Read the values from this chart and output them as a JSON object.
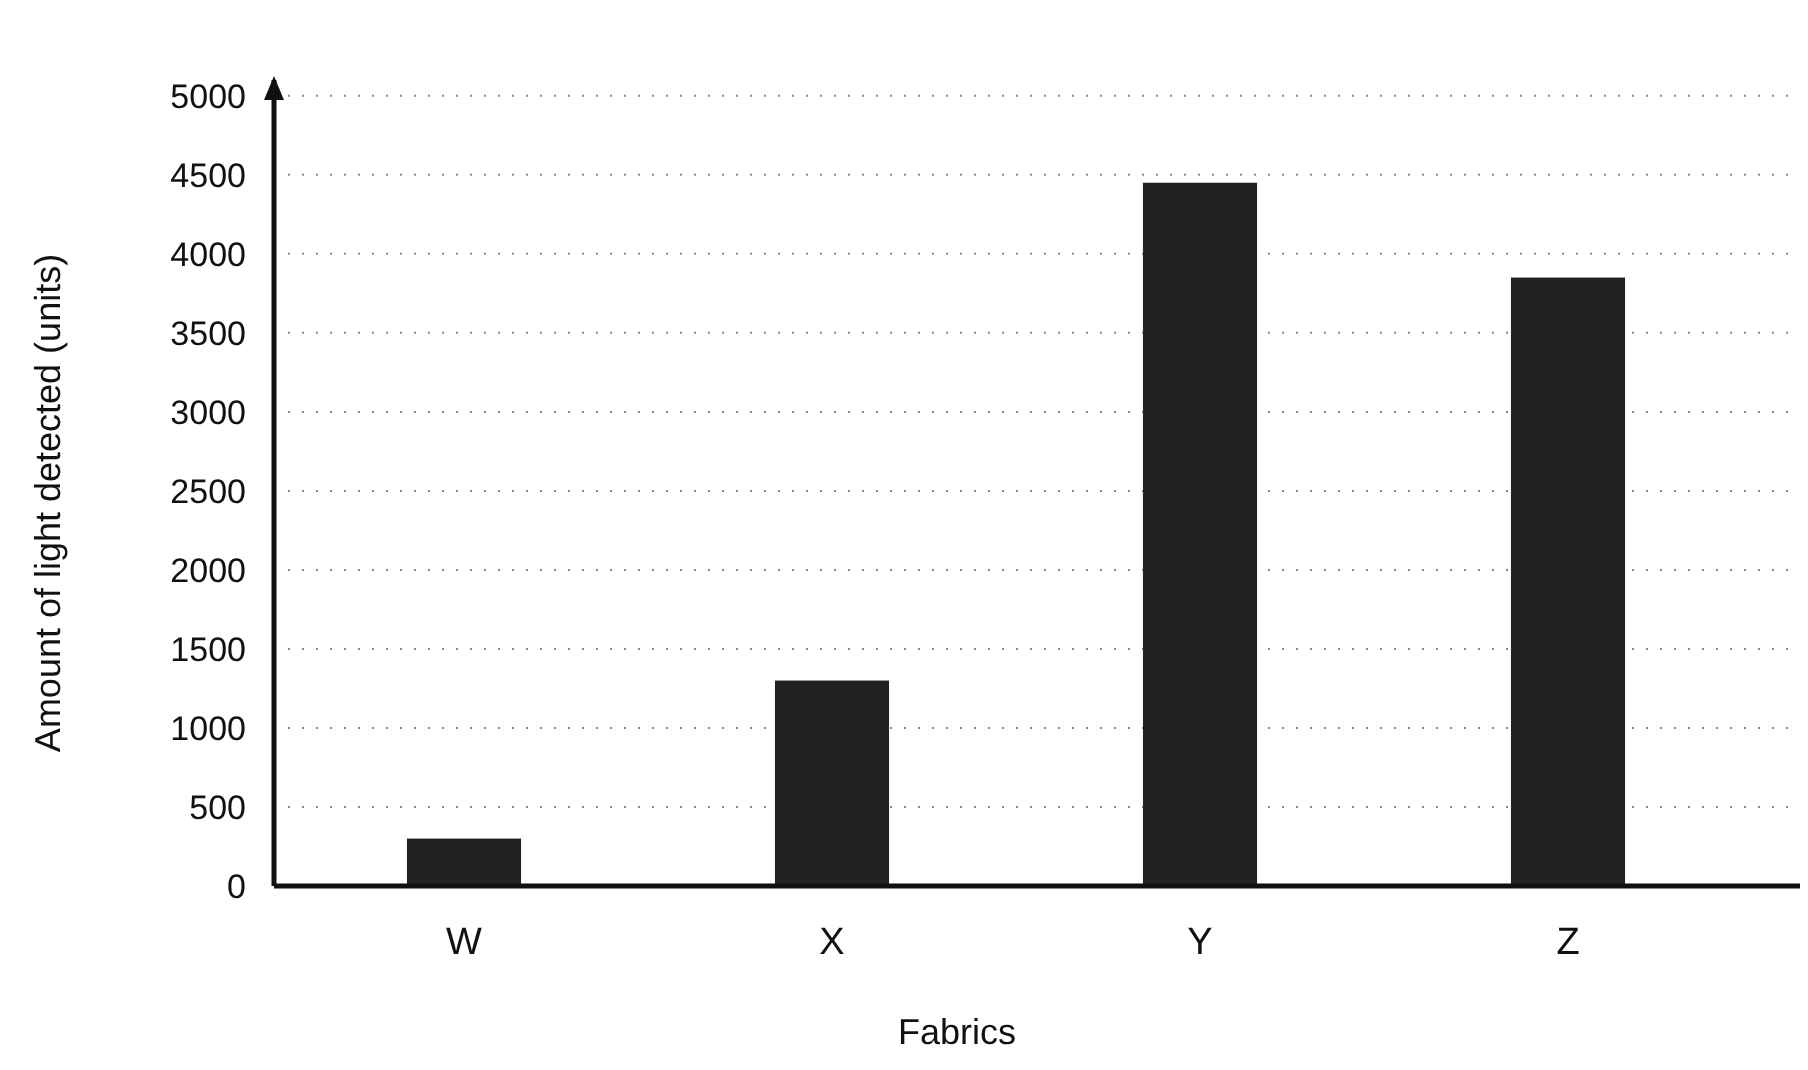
{
  "chart_data": {
    "type": "bar",
    "xlabel": "Fabrics",
    "ylabel": "Amount of light detected (units)",
    "categories": [
      "W",
      "X",
      "Y",
      "Z"
    ],
    "values": [
      300,
      1300,
      4450,
      3850
    ],
    "color": "#222222",
    "ylim": [
      0,
      5100
    ],
    "yticks": [
      0,
      500,
      1000,
      1500,
      2000,
      2500,
      3000,
      3500,
      4000,
      4500,
      5000
    ],
    "grid": "y"
  }
}
